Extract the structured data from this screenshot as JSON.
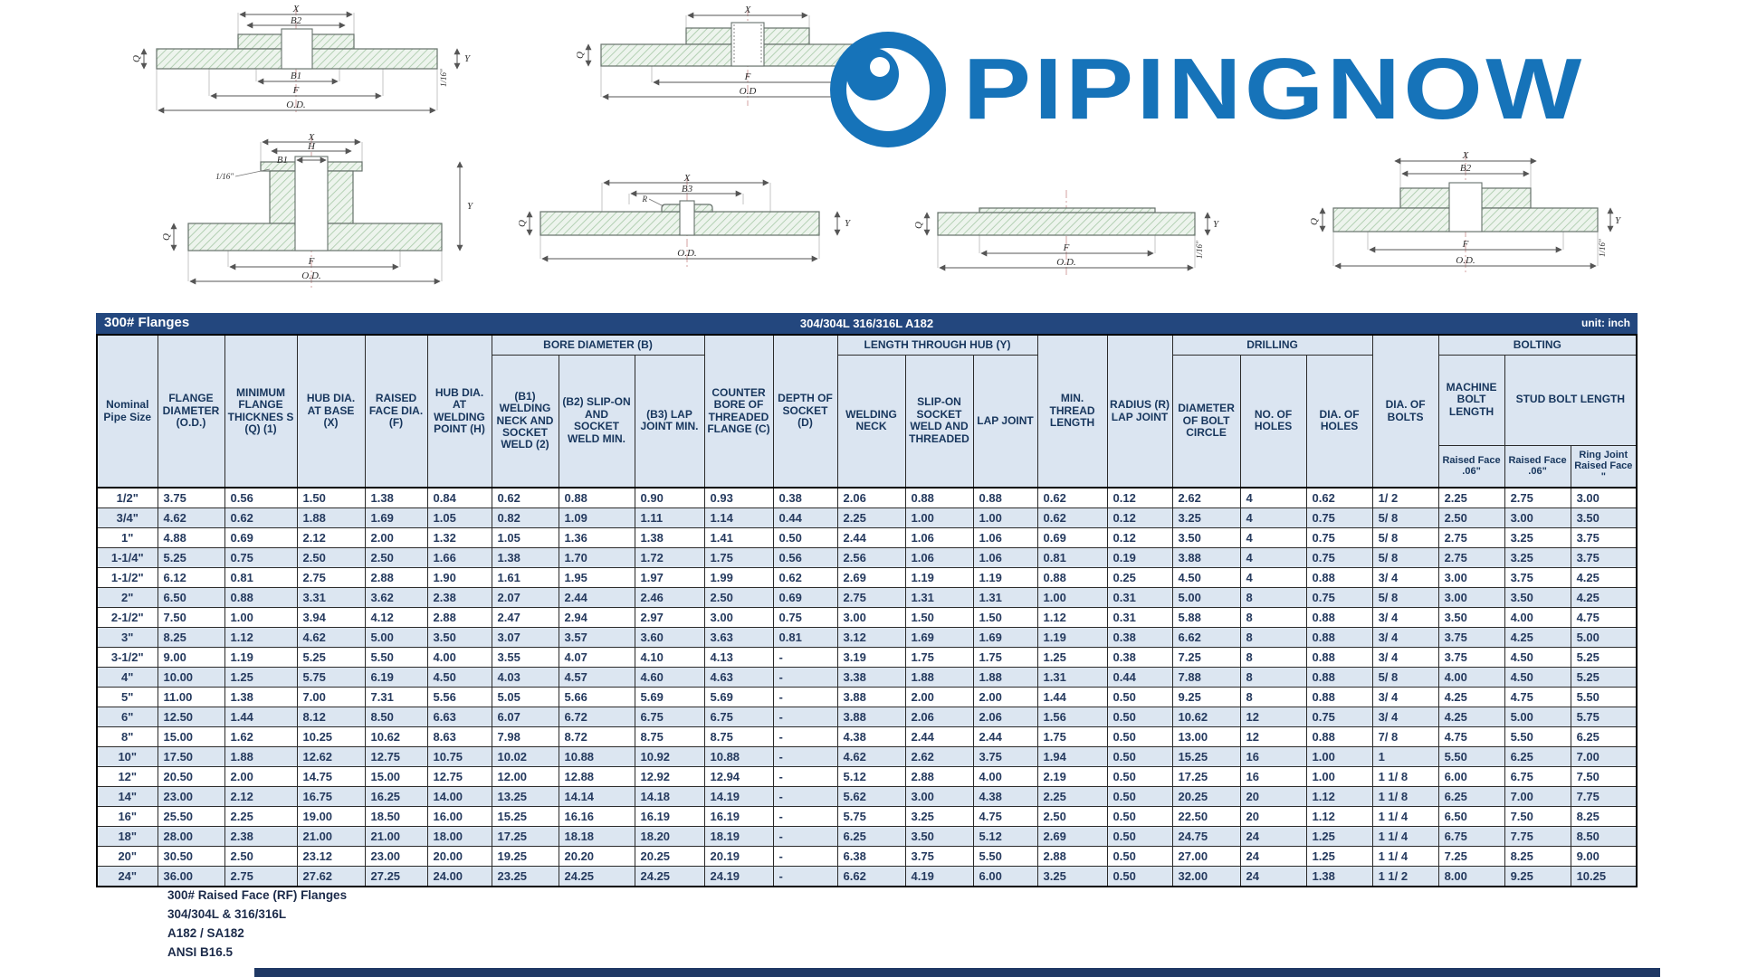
{
  "colors": {
    "accent_navy": "#23477E",
    "header_bg": "#DBE5F1",
    "logo_blue": "#1673B9",
    "alt_row": "#DCE6F1"
  },
  "logo": {
    "text": "PIPINGNOW"
  },
  "table": {
    "title_left": "300# Flanges",
    "title_center": "304/304L 316/316L A182",
    "title_right": "unit: inch",
    "groups": {
      "bore": "BORE DIAMETER (B)",
      "length_hub": "LENGTH THROUGH HUB (Y)",
      "drilling": "DRILLING",
      "bolting": "BOLTING"
    },
    "columns": [
      "Nominal Pipe Size",
      "FLANGE DIAMETER (O.D.)",
      "MINIMUM FLANGE THICKNES S (Q) (1)",
      "HUB DIA. AT BASE (X)",
      "RAISED FACE DIA. (F)",
      "HUB DIA. AT WELDING POINT (H)",
      "(B1) WELDING NECK AND SOCKET WELD (2)",
      "(B2) SLIP-ON AND SOCKET WELD MIN.",
      "(B3) LAP JOINT MIN.",
      "COUNTER BORE OF THREADED FLANGE (C)",
      "DEPTH OF SOCKET (D)",
      "WELDING NECK",
      "SLIP-ON SOCKET WELD AND THREADED",
      "LAP JOINT",
      "MIN. THREAD LENGTH",
      "RADIUS (R) LAP JOINT",
      "DIAMETER OF BOLT CIRCLE",
      "NO. OF HOLES",
      "DIA. OF HOLES",
      "DIA. OF BOLTS",
      "MACHINE BOLT LENGTH",
      "STUD BOLT LENGTH"
    ],
    "subcolumns": [
      "Raised Face .06\"",
      "Raised Face .06\"",
      "Ring Joint Raised Face \""
    ],
    "rows": [
      [
        "1/2\"",
        "3.75",
        "0.56",
        "1.50",
        "1.38",
        "0.84",
        "0.62",
        "0.88",
        "0.90",
        "0.93",
        "0.38",
        "2.06",
        "0.88",
        "0.88",
        "0.62",
        "0.12",
        "2.62",
        "4",
        "0.62",
        "1/ 2",
        "2.25",
        "2.75",
        "3.00"
      ],
      [
        "3/4\"",
        "4.62",
        "0.62",
        "1.88",
        "1.69",
        "1.05",
        "0.82",
        "1.09",
        "1.11",
        "1.14",
        "0.44",
        "2.25",
        "1.00",
        "1.00",
        "0.62",
        "0.12",
        "3.25",
        "4",
        "0.75",
        "5/ 8",
        "2.50",
        "3.00",
        "3.50"
      ],
      [
        "1\"",
        "4.88",
        "0.69",
        "2.12",
        "2.00",
        "1.32",
        "1.05",
        "1.36",
        "1.38",
        "1.41",
        "0.50",
        "2.44",
        "1.06",
        "1.06",
        "0.69",
        "0.12",
        "3.50",
        "4",
        "0.75",
        "5/ 8",
        "2.75",
        "3.25",
        "3.75"
      ],
      [
        "1-1/4\"",
        "5.25",
        "0.75",
        "2.50",
        "2.50",
        "1.66",
        "1.38",
        "1.70",
        "1.72",
        "1.75",
        "0.56",
        "2.56",
        "1.06",
        "1.06",
        "0.81",
        "0.19",
        "3.88",
        "4",
        "0.75",
        "5/ 8",
        "2.75",
        "3.25",
        "3.75"
      ],
      [
        "1-1/2\"",
        "6.12",
        "0.81",
        "2.75",
        "2.88",
        "1.90",
        "1.61",
        "1.95",
        "1.97",
        "1.99",
        "0.62",
        "2.69",
        "1.19",
        "1.19",
        "0.88",
        "0.25",
        "4.50",
        "4",
        "0.88",
        "3/ 4",
        "3.00",
        "3.75",
        "4.25"
      ],
      [
        "2\"",
        "6.50",
        "0.88",
        "3.31",
        "3.62",
        "2.38",
        "2.07",
        "2.44",
        "2.46",
        "2.50",
        "0.69",
        "2.75",
        "1.31",
        "1.31",
        "1.00",
        "0.31",
        "5.00",
        "8",
        "0.75",
        "5/ 8",
        "3.00",
        "3.50",
        "4.25"
      ],
      [
        "2-1/2\"",
        "7.50",
        "1.00",
        "3.94",
        "4.12",
        "2.88",
        "2.47",
        "2.94",
        "2.97",
        "3.00",
        "0.75",
        "3.00",
        "1.50",
        "1.50",
        "1.12",
        "0.31",
        "5.88",
        "8",
        "0.88",
        "3/ 4",
        "3.50",
        "4.00",
        "4.75"
      ],
      [
        "3\"",
        "8.25",
        "1.12",
        "4.62",
        "5.00",
        "3.50",
        "3.07",
        "3.57",
        "3.60",
        "3.63",
        "0.81",
        "3.12",
        "1.69",
        "1.69",
        "1.19",
        "0.38",
        "6.62",
        "8",
        "0.88",
        "3/ 4",
        "3.75",
        "4.25",
        "5.00"
      ],
      [
        "3-1/2\"",
        "9.00",
        "1.19",
        "5.25",
        "5.50",
        "4.00",
        "3.55",
        "4.07",
        "4.10",
        "4.13",
        "-",
        "3.19",
        "1.75",
        "1.75",
        "1.25",
        "0.38",
        "7.25",
        "8",
        "0.88",
        "3/ 4",
        "3.75",
        "4.50",
        "5.25"
      ],
      [
        "4\"",
        "10.00",
        "1.25",
        "5.75",
        "6.19",
        "4.50",
        "4.03",
        "4.57",
        "4.60",
        "4.63",
        "-",
        "3.38",
        "1.88",
        "1.88",
        "1.31",
        "0.44",
        "7.88",
        "8",
        "0.88",
        "5/ 8",
        "4.00",
        "4.50",
        "5.25"
      ],
      [
        "5\"",
        "11.00",
        "1.38",
        "7.00",
        "7.31",
        "5.56",
        "5.05",
        "5.66",
        "5.69",
        "5.69",
        "-",
        "3.88",
        "2.00",
        "2.00",
        "1.44",
        "0.50",
        "9.25",
        "8",
        "0.88",
        "3/ 4",
        "4.25",
        "4.75",
        "5.50"
      ],
      [
        "6\"",
        "12.50",
        "1.44",
        "8.12",
        "8.50",
        "6.63",
        "6.07",
        "6.72",
        "6.75",
        "6.75",
        "-",
        "3.88",
        "2.06",
        "2.06",
        "1.56",
        "0.50",
        "10.62",
        "12",
        "0.75",
        "3/ 4",
        "4.25",
        "5.00",
        "5.75"
      ],
      [
        "8\"",
        "15.00",
        "1.62",
        "10.25",
        "10.62",
        "8.63",
        "7.98",
        "8.72",
        "8.75",
        "8.75",
        "-",
        "4.38",
        "2.44",
        "2.44",
        "1.75",
        "0.50",
        "13.00",
        "12",
        "0.88",
        "7/ 8",
        "4.75",
        "5.50",
        "6.25"
      ],
      [
        "10\"",
        "17.50",
        "1.88",
        "12.62",
        "12.75",
        "10.75",
        "10.02",
        "10.88",
        "10.92",
        "10.88",
        "-",
        "4.62",
        "2.62",
        "3.75",
        "1.94",
        "0.50",
        "15.25",
        "16",
        "1.00",
        "1",
        "5.50",
        "6.25",
        "7.00"
      ],
      [
        "12\"",
        "20.50",
        "2.00",
        "14.75",
        "15.00",
        "12.75",
        "12.00",
        "12.88",
        "12.92",
        "12.94",
        "-",
        "5.12",
        "2.88",
        "4.00",
        "2.19",
        "0.50",
        "17.25",
        "16",
        "1.00",
        "1 1/ 8",
        "6.00",
        "6.75",
        "7.50"
      ],
      [
        "14\"",
        "23.00",
        "2.12",
        "16.75",
        "16.25",
        "14.00",
        "13.25",
        "14.14",
        "14.18",
        "14.19",
        "-",
        "5.62",
        "3.00",
        "4.38",
        "2.25",
        "0.50",
        "20.25",
        "20",
        "1.12",
        "1 1/ 8",
        "6.25",
        "7.00",
        "7.75"
      ],
      [
        "16\"",
        "25.50",
        "2.25",
        "19.00",
        "18.50",
        "16.00",
        "15.25",
        "16.16",
        "16.19",
        "16.19",
        "-",
        "5.75",
        "3.25",
        "4.75",
        "2.50",
        "0.50",
        "22.50",
        "20",
        "1.12",
        "1 1/ 4",
        "6.50",
        "7.50",
        "8.25"
      ],
      [
        "18\"",
        "28.00",
        "2.38",
        "21.00",
        "21.00",
        "18.00",
        "17.25",
        "18.18",
        "18.20",
        "18.19",
        "-",
        "6.25",
        "3.50",
        "5.12",
        "2.69",
        "0.50",
        "24.75",
        "24",
        "1.25",
        "1 1/ 4",
        "6.75",
        "7.75",
        "8.50"
      ],
      [
        "20\"",
        "30.50",
        "2.50",
        "23.12",
        "23.00",
        "20.00",
        "19.25",
        "20.20",
        "20.25",
        "20.19",
        "-",
        "6.38",
        "3.75",
        "5.50",
        "2.88",
        "0.50",
        "27.00",
        "24",
        "1.25",
        "1 1/ 4",
        "7.25",
        "8.25",
        "9.00"
      ],
      [
        "24\"",
        "36.00",
        "2.75",
        "27.62",
        "27.25",
        "24.00",
        "23.25",
        "24.25",
        "24.25",
        "24.19",
        "-",
        "6.62",
        "4.19",
        "6.00",
        "3.25",
        "0.50",
        "32.00",
        "24",
        "1.38",
        "1 1/ 2",
        "8.00",
        "9.25",
        "10.25"
      ]
    ]
  },
  "footer": {
    "lines": [
      "300# Raised Face (RF) Flanges",
      "304/304L & 316/316L",
      "A182 / SA182",
      "ANSI B16.5"
    ]
  },
  "drawings": {
    "d1": {
      "x": "X",
      "b2": "B2",
      "b1": "B1",
      "f": "F",
      "od": "O.D.",
      "y": "Y",
      "q": "Q",
      "note": "1/16\""
    },
    "d2": {
      "x": "X",
      "f": "F",
      "od": "O.D",
      "y": "Y",
      "q": "Q",
      "note": "1/16\""
    },
    "d3": {
      "x": "X",
      "h": "H",
      "b1": "B1",
      "f": "F",
      "od": "O.D.",
      "y": "Y",
      "q": "Q",
      "note": "1/16\""
    },
    "d4": {
      "x": "X",
      "b3": "B3",
      "od": "O.D.",
      "y": "Y",
      "q": "Q",
      "r": "R"
    },
    "d5": {
      "f": "F",
      "od": "O.D.",
      "y": "Y",
      "q": "Q",
      "note": "1/16\""
    },
    "d6": {
      "x": "X",
      "b2": "B2",
      "f": "F",
      "od": "O.D.",
      "y": "Y",
      "q": "Q",
      "note": "1/16\""
    }
  }
}
